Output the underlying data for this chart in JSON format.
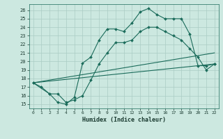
{
  "xlabel": "Humidex (Indice chaleur)",
  "background_color": "#cce8e0",
  "grid_color": "#aaccc4",
  "line_color": "#1a6b5a",
  "xlim": [
    -0.5,
    22.5
  ],
  "ylim": [
    14.5,
    26.7
  ],
  "yticks": [
    15,
    16,
    17,
    18,
    19,
    20,
    21,
    22,
    23,
    24,
    25,
    26
  ],
  "xticks": [
    0,
    1,
    2,
    3,
    4,
    5,
    6,
    7,
    8,
    9,
    10,
    11,
    12,
    13,
    14,
    15,
    16,
    17,
    18,
    19,
    20,
    21,
    22
  ],
  "line1_x": [
    0,
    1,
    2,
    3,
    4,
    5,
    6,
    7,
    8,
    9,
    10,
    11,
    12,
    13,
    14,
    15,
    16,
    17,
    18,
    19,
    20,
    21,
    22
  ],
  "line1_y": [
    17.5,
    17.0,
    16.2,
    15.2,
    15.0,
    15.8,
    19.8,
    20.5,
    22.5,
    23.8,
    23.8,
    23.5,
    24.5,
    25.8,
    26.2,
    25.5,
    25.0,
    25.0,
    25.0,
    23.2,
    19.5,
    19.5,
    19.7
  ],
  "line2_x": [
    0,
    2,
    3,
    4,
    5,
    6,
    7,
    8,
    9,
    10,
    11,
    12,
    13,
    14,
    15,
    16,
    17,
    18,
    19,
    20,
    21,
    22
  ],
  "line2_y": [
    17.5,
    16.2,
    16.2,
    15.2,
    15.5,
    16.0,
    17.8,
    19.7,
    21.0,
    22.2,
    22.2,
    22.5,
    23.5,
    24.0,
    24.0,
    23.5,
    23.0,
    22.5,
    21.5,
    20.5,
    19.0,
    19.7
  ],
  "line3_x": [
    0,
    22
  ],
  "line3_y": [
    17.5,
    19.7
  ],
  "line4_x": [
    0,
    22
  ],
  "line4_y": [
    17.5,
    21.0
  ]
}
